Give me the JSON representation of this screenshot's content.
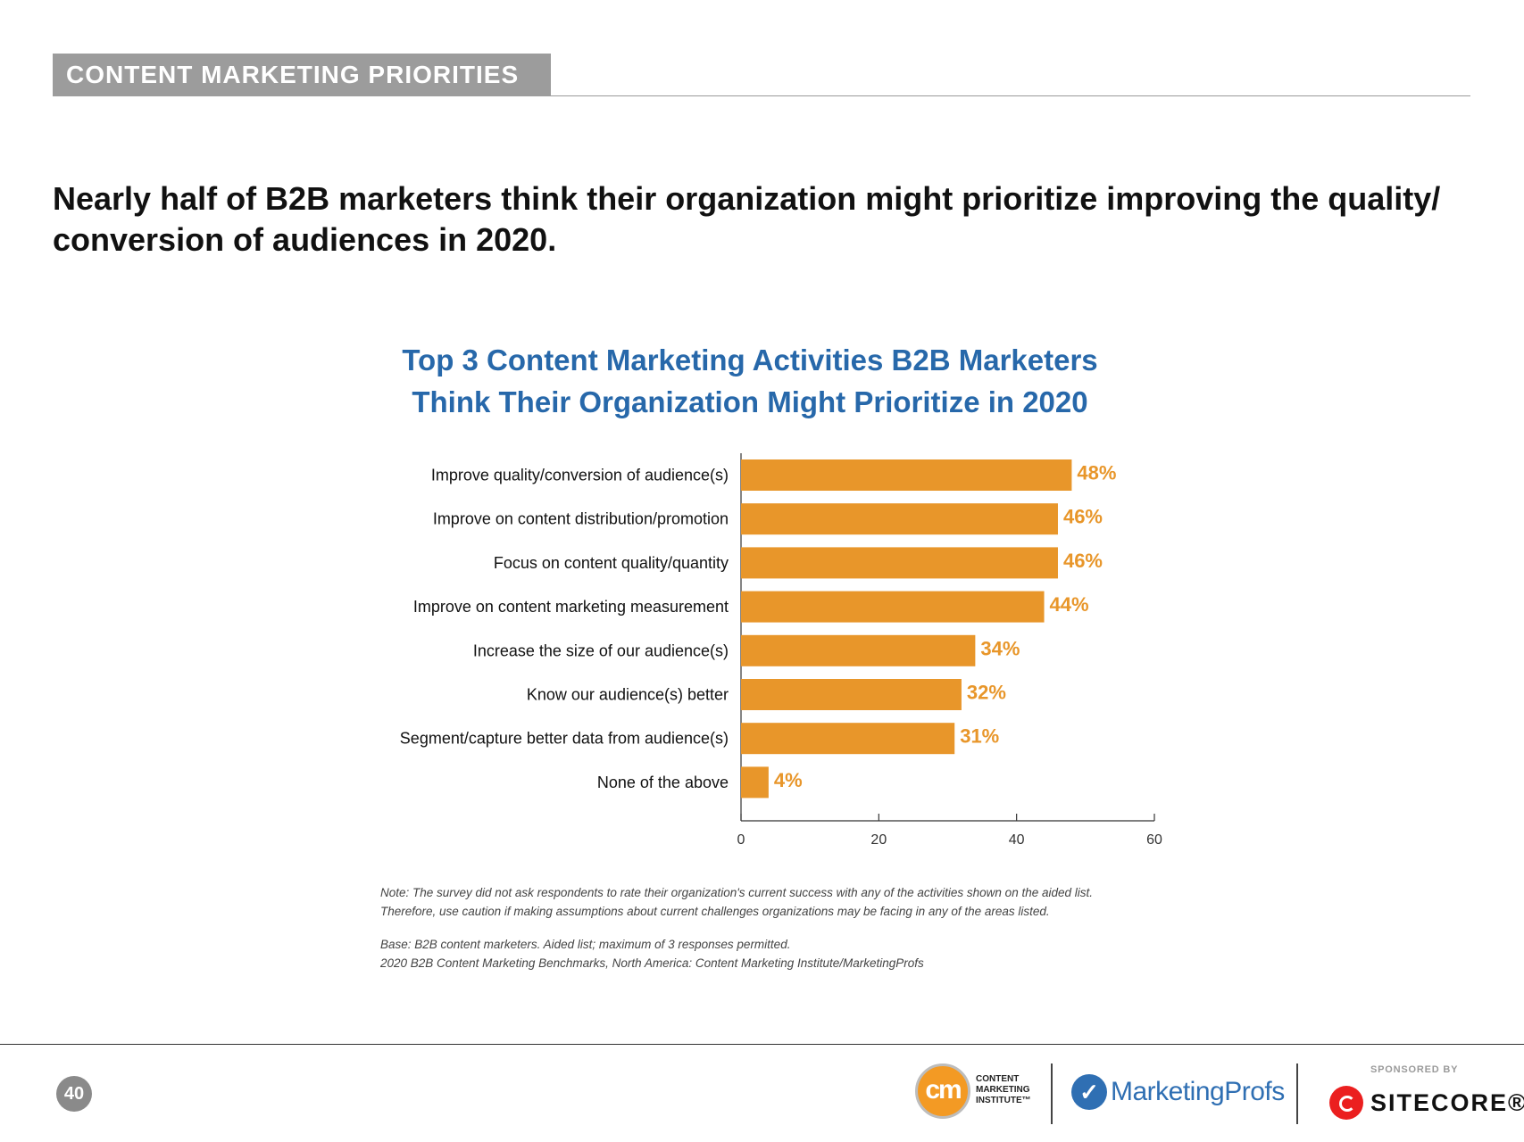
{
  "header": {
    "section_label": "CONTENT MARKETING PRIORITIES"
  },
  "headline": "Nearly half of B2B marketers think their organization might prioritize improving the quality/ conversion of audiences in 2020.",
  "chart_data": {
    "type": "bar",
    "orientation": "horizontal",
    "title": "Top 3 Content Marketing Activities B2B Marketers Think Their Organization Might Prioritize in 2020",
    "title_lines": [
      "Top 3 Content Marketing Activities B2B Marketers",
      "Think Their Organization Might Prioritize in 2020"
    ],
    "categories": [
      "Improve quality/conversion of audience(s)",
      "Improve on content distribution/promotion",
      "Focus on content quality/quantity",
      "Improve on content marketing measurement",
      "Increase the size of our audience(s)",
      "Know our audience(s) better",
      "Segment/capture better data from audience(s)",
      "None of the above"
    ],
    "values": [
      48,
      46,
      46,
      44,
      34,
      32,
      31,
      4
    ],
    "value_labels": [
      "48%",
      "46%",
      "46%",
      "44%",
      "34%",
      "32%",
      "31%",
      "4%"
    ],
    "xlim": [
      0,
      60
    ],
    "xticks": [
      0,
      20,
      40,
      60
    ],
    "xlabel": "",
    "ylabel": "",
    "grid": false,
    "bar_color": "#e8962a",
    "label_color": "#e8962a"
  },
  "notes": {
    "note_line1": "Note: The survey did not ask respondents to rate their organization's current success with any of the activities shown on the aided list.",
    "note_line2": "Therefore, use caution if making assumptions about current challenges organizations may be facing in any of the areas listed.",
    "base_line1": "Base: B2B content marketers. Aided list; maximum of 3 responses permitted.",
    "base_line2": "2020 B2B Content Marketing Benchmarks, North America: Content Marketing Institute/MarketingProfs"
  },
  "footer": {
    "page_number": "40",
    "cmi_logo_mark": "cm",
    "cmi_logo_text_lines": [
      "CONTENT",
      "MARKETING",
      "INSTITUTE™"
    ],
    "marketingprofs_logo": "MarketingProfs",
    "sponsored_by": "SPONSORED BY",
    "sponsor_name": "SITECORE®"
  }
}
